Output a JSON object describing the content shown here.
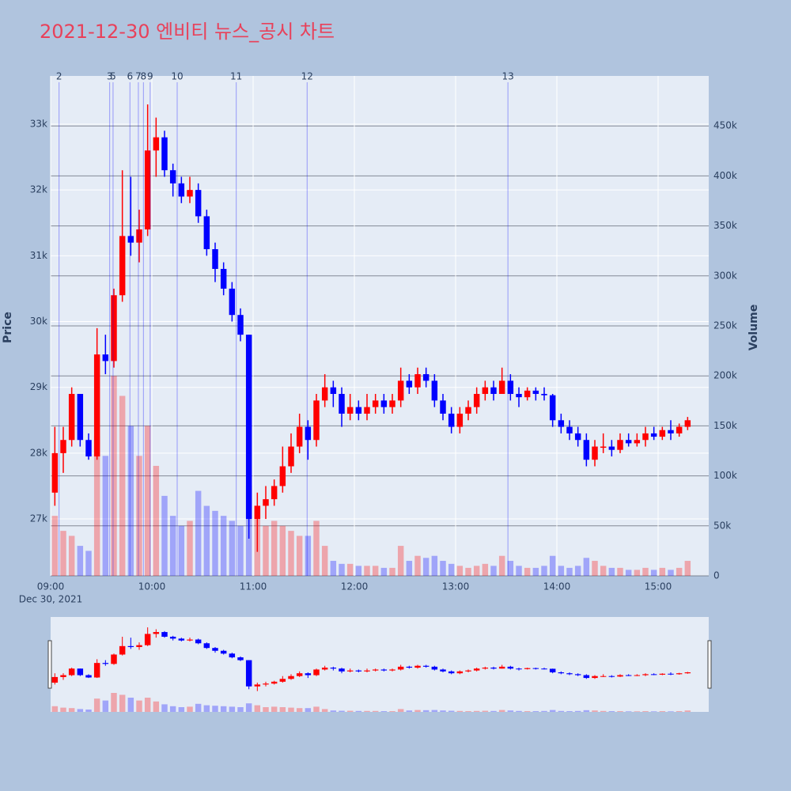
{
  "chart_data": {
    "type": "candlestick",
    "title": "2021-12-30 엔비티 뉴스_공시 차트",
    "y_label": "Price",
    "y2_label": "Volume",
    "x_date_label": "Dec 30, 2021",
    "xlim": [
      "09:00",
      "15:30"
    ],
    "xticks": [
      "09:00",
      "10:00",
      "11:00",
      "12:00",
      "13:00",
      "14:00",
      "15:00"
    ],
    "ylim": [
      26135,
      33733
    ],
    "yticks": [
      {
        "value": 27000,
        "label": "27k"
      },
      {
        "value": 28000,
        "label": "28k"
      },
      {
        "value": 29000,
        "label": "29k"
      },
      {
        "value": 30000,
        "label": "30k"
      },
      {
        "value": 31000,
        "label": "31k"
      },
      {
        "value": 32000,
        "label": "32k"
      },
      {
        "value": 33000,
        "label": "33k"
      }
    ],
    "y2lim": [
      0,
      500000
    ],
    "y2ticks": [
      0,
      {
        "value": 50000,
        "label": "50k"
      },
      {
        "value": 100000,
        "label": "100k"
      },
      {
        "value": 150000,
        "label": "150k"
      },
      {
        "value": 200000,
        "label": "200k"
      },
      {
        "value": 250000,
        "label": "250k"
      },
      {
        "value": 300000,
        "label": "300k"
      },
      {
        "value": 350000,
        "label": "350k"
      },
      {
        "value": 400000,
        "label": "400k"
      },
      {
        "value": 450000,
        "label": "450k"
      }
    ],
    "grid": true,
    "increasing_color": "#ff0000",
    "decreasing_color": "#0000ff",
    "events": [
      {
        "label": "2",
        "x": "09:05"
      },
      {
        "label": "3",
        "x": "09:35"
      },
      {
        "label": "5",
        "x": "09:37"
      },
      {
        "label": "6",
        "x": "09:47"
      },
      {
        "label": "7",
        "x": "09:52"
      },
      {
        "label": "8",
        "x": "09:55"
      },
      {
        "label": "9",
        "x": "09:59"
      },
      {
        "label": "10",
        "x": "10:15"
      },
      {
        "label": "11",
        "x": "10:50"
      },
      {
        "label": "12",
        "x": "11:32"
      },
      {
        "label": "13",
        "x": "13:31"
      }
    ],
    "x": [
      "09:00",
      "09:05",
      "09:10",
      "09:15",
      "09:20",
      "09:25",
      "09:30",
      "09:35",
      "09:40",
      "09:45",
      "09:50",
      "09:55",
      "10:00",
      "10:05",
      "10:10",
      "10:15",
      "10:20",
      "10:25",
      "10:30",
      "10:35",
      "10:40",
      "10:45",
      "10:50",
      "10:55",
      "11:00",
      "11:05",
      "11:10",
      "11:15",
      "11:20",
      "11:25",
      "11:30",
      "11:35",
      "11:40",
      "11:45",
      "11:50",
      "11:55",
      "12:00",
      "12:05",
      "12:10",
      "12:15",
      "12:20",
      "12:25",
      "12:30",
      "12:35",
      "12:40",
      "12:45",
      "12:50",
      "12:55",
      "13:00",
      "13:05",
      "13:10",
      "13:15",
      "13:20",
      "13:25",
      "13:30",
      "13:35",
      "13:40",
      "13:45",
      "13:50",
      "13:55",
      "14:00",
      "14:05",
      "14:10",
      "14:15",
      "14:20",
      "14:25",
      "14:30",
      "14:35",
      "14:40",
      "14:45",
      "14:50",
      "14:55",
      "15:00",
      "15:05",
      "15:10",
      "15:15"
    ],
    "open": [
      27400,
      28000,
      28200,
      28900,
      28200,
      27950,
      29500,
      29400,
      30400,
      31300,
      31200,
      31400,
      32600,
      32800,
      32300,
      32100,
      31900,
      32000,
      31600,
      31100,
      30800,
      30500,
      30100,
      29800,
      27000,
      27200,
      27300,
      27500,
      27800,
      28100,
      28400,
      28200,
      28800,
      29000,
      28900,
      28600,
      28700,
      28600,
      28700,
      28800,
      28700,
      28800,
      29100,
      29000,
      29200,
      29100,
      28800,
      28600,
      28400,
      28600,
      28700,
      28900,
      29000,
      28900,
      29100,
      28900,
      28850,
      28950,
      28900,
      28880,
      28500,
      28400,
      28300,
      28200,
      27900,
      28100,
      28100,
      28050,
      28200,
      28150,
      28200,
      28300,
      28250,
      28350,
      28300,
      28400
    ],
    "high": [
      28400,
      28400,
      29000,
      28900,
      28300,
      29900,
      29800,
      30500,
      32300,
      32200,
      31700,
      33300,
      33100,
      32900,
      32400,
      32200,
      32200,
      32100,
      31700,
      31200,
      30900,
      30600,
      30200,
      29800,
      27400,
      27500,
      27600,
      28100,
      28300,
      28600,
      28500,
      28900,
      29200,
      29100,
      29000,
      28900,
      28800,
      28900,
      28900,
      28900,
      28900,
      29300,
      29200,
      29300,
      29300,
      29200,
      28900,
      28700,
      28700,
      28800,
      29000,
      29100,
      29100,
      29300,
      29200,
      29000,
      29000,
      29000,
      29000,
      28900,
      28600,
      28500,
      28400,
      28300,
      28200,
      28300,
      28200,
      28300,
      28300,
      28300,
      28400,
      28400,
      28400,
      28500,
      28450,
      28550
    ],
    "low": [
      27200,
      27700,
      28100,
      28100,
      27900,
      27900,
      29200,
      29300,
      30300,
      31000,
      30900,
      31300,
      32200,
      32200,
      31900,
      31800,
      31800,
      31500,
      31000,
      30600,
      30400,
      30000,
      29700,
      26700,
      26500,
      27000,
      27200,
      27400,
      27700,
      28000,
      27900,
      28100,
      28700,
      28700,
      28400,
      28500,
      28500,
      28500,
      28600,
      28600,
      28600,
      28700,
      28900,
      28900,
      29000,
      28700,
      28500,
      28300,
      28300,
      28500,
      28600,
      28800,
      28800,
      28900,
      28800,
      28700,
      28800,
      28800,
      28800,
      28400,
      28300,
      28200,
      28100,
      27800,
      27800,
      28000,
      27950,
      28000,
      28100,
      28100,
      28100,
      28200,
      28200,
      28200,
      28250,
      28350
    ],
    "close": [
      28000,
      28200,
      28900,
      28200,
      27950,
      29500,
      29400,
      30400,
      31300,
      31200,
      31400,
      32600,
      32800,
      32300,
      32100,
      31900,
      32000,
      31600,
      31100,
      30800,
      30500,
      30100,
      29800,
      27000,
      27200,
      27300,
      27500,
      27800,
      28100,
      28400,
      28200,
      28800,
      29000,
      28900,
      28600,
      28700,
      28600,
      28700,
      28800,
      28700,
      28800,
      29100,
      29000,
      29200,
      29100,
      28800,
      28600,
      28400,
      28600,
      28700,
      28900,
      29000,
      28900,
      29100,
      28900,
      28850,
      28950,
      28900,
      28880,
      28500,
      28400,
      28300,
      28200,
      27900,
      28100,
      28100,
      28050,
      28200,
      28150,
      28200,
      28300,
      28250,
      28350,
      28300,
      28400,
      28500
    ],
    "volume": [
      60000,
      45000,
      40000,
      30000,
      25000,
      140000,
      120000,
      200000,
      180000,
      150000,
      120000,
      150000,
      110000,
      80000,
      60000,
      50000,
      55000,
      85000,
      70000,
      65000,
      60000,
      55000,
      50000,
      90000,
      70000,
      50000,
      55000,
      50000,
      45000,
      40000,
      40000,
      55000,
      30000,
      15000,
      12000,
      12000,
      10000,
      10000,
      10000,
      8000,
      8000,
      30000,
      15000,
      20000,
      18000,
      20000,
      15000,
      12000,
      10000,
      8000,
      10000,
      12000,
      10000,
      20000,
      15000,
      10000,
      8000,
      8000,
      10000,
      20000,
      10000,
      8000,
      10000,
      18000,
      15000,
      10000,
      8000,
      8000,
      6000,
      6000,
      8000,
      6000,
      8000,
      6000,
      8000,
      15000
    ]
  }
}
